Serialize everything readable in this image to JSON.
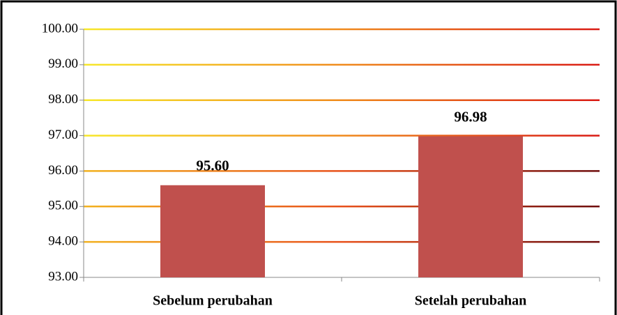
{
  "chart_data": {
    "type": "bar",
    "categories": [
      "Sebelum perubahan",
      "Setelah perubahan"
    ],
    "values": [
      95.6,
      96.98
    ],
    "value_labels": [
      "95.60",
      "96.98"
    ],
    "color": "#c0504d",
    "ylim": [
      93,
      100
    ],
    "yticks": [
      {
        "value": 93,
        "label": "93.00"
      },
      {
        "value": 94,
        "label": "94.00"
      },
      {
        "value": 95,
        "label": "95.00"
      },
      {
        "value": 96,
        "label": "96.00"
      },
      {
        "value": 97,
        "label": "97.00"
      },
      {
        "value": 98,
        "label": "98.00"
      },
      {
        "value": 99,
        "label": "99.00"
      },
      {
        "value": 100,
        "label": "100.00"
      }
    ],
    "grid": true
  }
}
